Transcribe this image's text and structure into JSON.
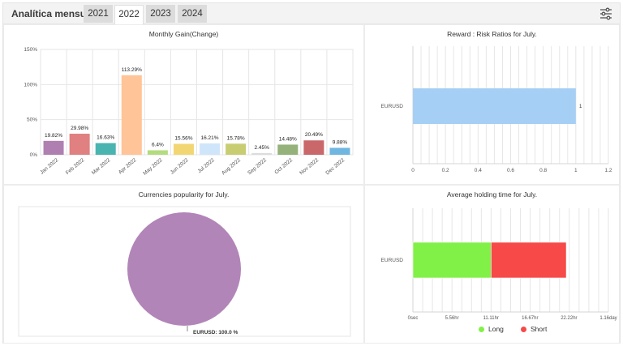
{
  "header": {
    "title": "Analítica mensual",
    "tabs": [
      {
        "label": "2021",
        "active": false
      },
      {
        "label": "2022",
        "active": true
      },
      {
        "label": "2023",
        "active": false
      },
      {
        "label": "2024",
        "active": false
      }
    ],
    "settings_icon": "sliders-icon"
  },
  "chart_data": [
    {
      "id": "monthly_gain",
      "type": "bar",
      "title": "Monthly Gain(Change)",
      "categories": [
        "Jan 2022",
        "Feb 2022",
        "Mar 2022",
        "Apr 2022",
        "May 2022",
        "Jun 2022",
        "Jul 2022",
        "Aug 2022",
        "Sep 2022",
        "Oct 2022",
        "Nov 2022",
        "Dec 2022"
      ],
      "values": [
        19.82,
        29.98,
        16.63,
        113.29,
        6.4,
        15.56,
        16.21,
        15.78,
        2.45,
        14.48,
        20.49,
        9.88
      ],
      "value_labels": [
        "19.82%",
        "29.98%",
        "16.63%",
        "113.29%",
        "6.4%",
        "15.56%",
        "16.21%",
        "15.78%",
        "2.45%",
        "14.48%",
        "20.49%",
        "9.88%"
      ],
      "colors": [
        "#b07fb2",
        "#e08080",
        "#4ab5b0",
        "#ffc497",
        "#b3dc7e",
        "#f2d674",
        "#cfe6fa",
        "#c9cd72",
        "#dcdcdc",
        "#94b27a",
        "#c9676a",
        "#6fb6e0"
      ],
      "ylim": [
        0,
        150
      ],
      "yticks": [
        "0%",
        "50%",
        "100%",
        "150%"
      ],
      "ytick_values": [
        0,
        50,
        100,
        150
      ],
      "grid": true
    },
    {
      "id": "reward_risk",
      "type": "bar",
      "orientation": "horizontal",
      "title": "Reward : Risk Ratios for July.",
      "categories": [
        "EURUSD"
      ],
      "values": [
        1
      ],
      "value_labels": [
        "1"
      ],
      "color": "#a6cff5",
      "xlim": [
        0,
        1.2
      ],
      "xticks": [
        "0",
        "0.2",
        "0.4",
        "0.6",
        "0.8",
        "1",
        "1.2"
      ],
      "xtick_values": [
        0,
        0.2,
        0.4,
        0.6,
        0.8,
        1,
        1.2
      ],
      "grid": true
    },
    {
      "id": "currency_popularity",
      "type": "pie",
      "title": "Currencies popularity for July.",
      "slices": [
        {
          "label": "EURUSD: 100.0 %",
          "value": 100,
          "color": "#b285b8"
        }
      ]
    },
    {
      "id": "holding_time",
      "type": "bar",
      "orientation": "horizontal",
      "stacked": true,
      "title": "Average holding time for July.",
      "categories": [
        "EURUSD"
      ],
      "series": [
        {
          "name": "Long",
          "values": [
            0.464
          ],
          "color": "#82f147"
        },
        {
          "name": "Short",
          "values": [
            0.446
          ],
          "color": "#f64948"
        }
      ],
      "xlim": [
        0,
        1.16
      ],
      "xticks": [
        "0sec",
        "5.56hr",
        "11.11hr",
        "16.67hr",
        "22.22hr",
        "1.16day"
      ],
      "xtick_values": [
        0,
        0.2315,
        0.463,
        0.6946,
        0.926,
        1.16
      ],
      "grid": true,
      "legend": "bottom"
    }
  ]
}
